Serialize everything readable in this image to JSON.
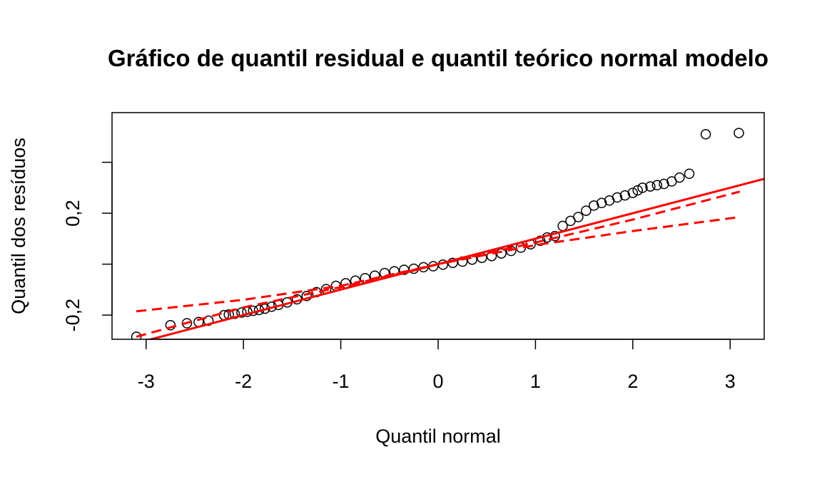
{
  "chart_data": {
    "type": "scatter",
    "title": "Gráfico de quantil residual e quantil teórico normal modelo",
    "xlabel": "Quantil normal",
    "ylabel": "Quantil dos resíduos",
    "xlim": [
      -3.35,
      3.35
    ],
    "ylim": [
      -0.295,
      0.595
    ],
    "x_ticks": [
      -3,
      -2,
      -1,
      0,
      1,
      2,
      3
    ],
    "x_tick_labels": [
      "-3",
      "-2",
      "-1",
      "0",
      "1",
      "2",
      "3"
    ],
    "y_ticks": [
      -0.2,
      0.0,
      0.2,
      0.4
    ],
    "y_tick_labels": [
      "-0,2",
      "",
      "0,2",
      ""
    ],
    "grid": false,
    "legend": "none",
    "colors": {
      "points": "#000000",
      "reference_line": "#ff0000",
      "envelope": "#ff0000"
    },
    "point_style": "open-circle",
    "reference_line": {
      "intercept": 0.0,
      "slope": 0.1,
      "style": "solid"
    },
    "envelope_lines": [
      {
        "style": "dashed",
        "points": [
          [
            -3.1,
            -0.285
          ],
          [
            -2.0,
            -0.17
          ],
          [
            -1.0,
            -0.09
          ],
          [
            0.0,
            0.0
          ],
          [
            1.0,
            0.085
          ],
          [
            2.0,
            0.175
          ],
          [
            3.1,
            0.285
          ]
        ]
      },
      {
        "style": "dashed",
        "points": [
          [
            -3.1,
            -0.185
          ],
          [
            -2.0,
            -0.14
          ],
          [
            -1.0,
            -0.085
          ],
          [
            0.0,
            0.0
          ],
          [
            1.0,
            0.075
          ],
          [
            2.0,
            0.13
          ],
          [
            3.1,
            0.185
          ]
        ]
      }
    ],
    "points_x": [
      -3.1,
      -2.75,
      -2.58,
      -2.46,
      -2.36,
      -2.2,
      -2.15,
      -2.09,
      -2.02,
      -1.96,
      -1.9,
      -1.84,
      -1.78,
      -1.71,
      -1.64,
      -1.55,
      -1.45,
      -1.35,
      -1.25,
      -1.15,
      -1.05,
      -0.95,
      -0.85,
      -0.75,
      -0.65,
      -0.55,
      -0.45,
      -0.35,
      -0.25,
      -0.15,
      -0.05,
      0.05,
      0.15,
      0.25,
      0.35,
      0.45,
      0.55,
      0.65,
      0.75,
      0.85,
      0.95,
      1.05,
      1.12,
      1.2,
      1.28,
      1.36,
      1.44,
      1.52,
      1.6,
      1.68,
      1.76,
      1.84,
      1.92,
      2.0,
      2.05,
      2.1,
      2.18,
      2.25,
      2.32,
      2.4,
      2.48,
      2.58,
      2.75,
      3.09
    ],
    "points_y": [
      -0.285,
      -0.24,
      -0.232,
      -0.227,
      -0.222,
      -0.2,
      -0.198,
      -0.195,
      -0.19,
      -0.187,
      -0.183,
      -0.18,
      -0.175,
      -0.167,
      -0.16,
      -0.15,
      -0.138,
      -0.125,
      -0.11,
      -0.098,
      -0.085,
      -0.075,
      -0.065,
      -0.055,
      -0.045,
      -0.035,
      -0.028,
      -0.022,
      -0.018,
      -0.012,
      -0.008,
      -0.002,
      0.005,
      0.01,
      0.018,
      0.025,
      0.032,
      0.042,
      0.052,
      0.065,
      0.078,
      0.092,
      0.105,
      0.11,
      0.15,
      0.17,
      0.185,
      0.21,
      0.23,
      0.24,
      0.25,
      0.262,
      0.27,
      0.28,
      0.29,
      0.3,
      0.305,
      0.31,
      0.315,
      0.325,
      0.34,
      0.355,
      0.51,
      0.515
    ]
  }
}
